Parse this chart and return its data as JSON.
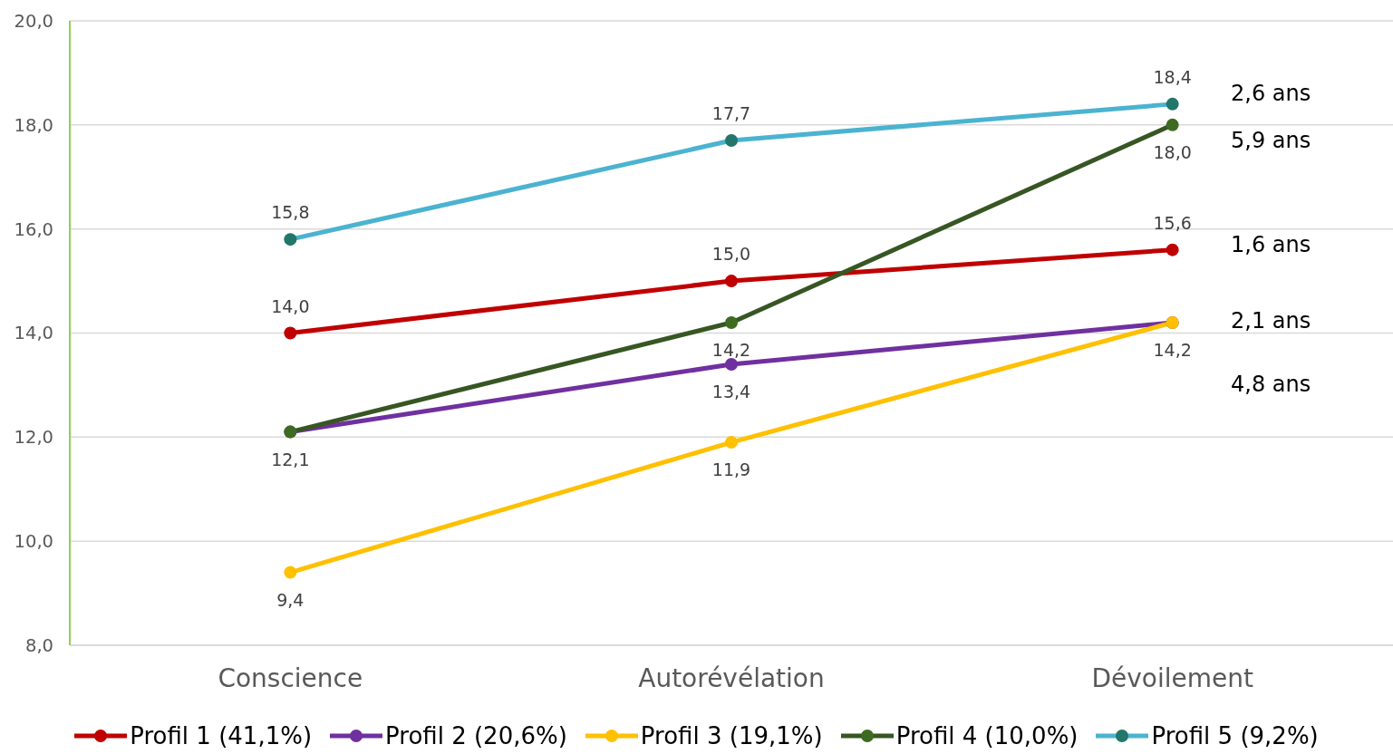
{
  "chart_data": {
    "type": "line",
    "categories": [
      "Conscience",
      "Autorévélation",
      "Dévoilement"
    ],
    "series": [
      {
        "name": "Profil 1 (41,1%)",
        "color": "#c00000",
        "values": [
          14.0,
          15.0,
          15.6
        ],
        "value_labels": [
          "14,0",
          "15,0",
          "15,6"
        ]
      },
      {
        "name": "Profil 2 (20,6%)",
        "color": "#7030a0",
        "values": [
          12.1,
          13.4,
          14.2
        ],
        "value_labels": [
          "12,1",
          "13,4",
          "14,2"
        ]
      },
      {
        "name": "Profil 3 (19,1%)",
        "color": "#ffc000",
        "values": [
          9.4,
          11.9,
          14.2
        ],
        "value_labels": [
          "9,4",
          "11,9",
          null
        ]
      },
      {
        "name": "Profil 4 (10,0%)",
        "color": "#375623",
        "colors": [
          "#3e6b21",
          "#3e6b21",
          "#3e6b21"
        ],
        "values": [
          12.1,
          14.2,
          18.0
        ],
        "value_labels": [
          null,
          "14,2",
          "18,0"
        ]
      },
      {
        "name": "Profil 5 (9,2%)",
        "color": "#4bb3d0",
        "colors": [
          "#22766a",
          "#22766a",
          "#22766a"
        ],
        "values": [
          15.8,
          17.7,
          18.4
        ],
        "value_labels": [
          "15,8",
          "17,7",
          "18,4"
        ]
      }
    ],
    "ylim": [
      8,
      20
    ],
    "yticks": [
      {
        "value": 8,
        "label": "8,0"
      },
      {
        "value": 10,
        "label": "10,0"
      },
      {
        "value": 12,
        "label": "12,0"
      },
      {
        "value": 14,
        "label": "14,0"
      },
      {
        "value": 16,
        "label": "16,0"
      },
      {
        "value": 18,
        "label": "18,0"
      },
      {
        "value": 20,
        "label": "20,0"
      }
    ],
    "grid": "y",
    "legend": "bottom",
    "marker": "circle",
    "line_style": "solid",
    "annotations": [
      "2,6 ans",
      "5,9 ans",
      "1,6 ans",
      "2,1 ans",
      "4,8 ans"
    ]
  }
}
